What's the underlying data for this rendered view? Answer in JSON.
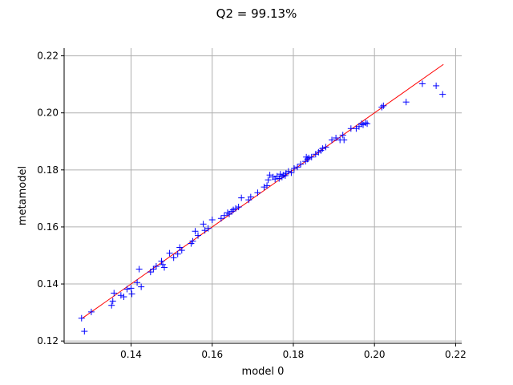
{
  "chart_data": {
    "type": "scatter",
    "title": "Q2 = 99.13%",
    "xlabel": "model 0",
    "ylabel": "metamodel",
    "xlim": [
      0.1235,
      0.2215
    ],
    "ylim": [
      0.1192,
      0.2227
    ],
    "xticks": [
      0.14,
      0.16,
      0.18,
      0.2,
      0.22
    ],
    "yticks": [
      0.12,
      0.14,
      0.16,
      0.18,
      0.2,
      0.22
    ],
    "xtick_labels": [
      "0.14",
      "0.16",
      "0.18",
      "0.20",
      "0.22"
    ],
    "ytick_labels": [
      "0.12",
      "0.14",
      "0.16",
      "0.18",
      "0.20",
      "0.22"
    ],
    "grid": true,
    "marker": "+",
    "marker_color": "#0000ff",
    "reference_line": {
      "from": [
        0.128,
        0.128
      ],
      "to": [
        0.217,
        0.217
      ],
      "color": "#ff0000"
    },
    "points": [
      [
        0.1278,
        0.128
      ],
      [
        0.1285,
        0.1234
      ],
      [
        0.1302,
        0.1302
      ],
      [
        0.1352,
        0.1325
      ],
      [
        0.1355,
        0.134
      ],
      [
        0.1358,
        0.1368
      ],
      [
        0.1375,
        0.136
      ],
      [
        0.1382,
        0.1355
      ],
      [
        0.139,
        0.1382
      ],
      [
        0.14,
        0.1385
      ],
      [
        0.1402,
        0.1365
      ],
      [
        0.1415,
        0.1405
      ],
      [
        0.142,
        0.1452
      ],
      [
        0.1425,
        0.139
      ],
      [
        0.1448,
        0.1442
      ],
      [
        0.1455,
        0.1452
      ],
      [
        0.1462,
        0.1462
      ],
      [
        0.1475,
        0.148
      ],
      [
        0.1478,
        0.1468
      ],
      [
        0.1482,
        0.1458
      ],
      [
        0.1495,
        0.1508
      ],
      [
        0.1505,
        0.1492
      ],
      [
        0.1515,
        0.1505
      ],
      [
        0.152,
        0.1528
      ],
      [
        0.1525,
        0.1518
      ],
      [
        0.1548,
        0.1542
      ],
      [
        0.1552,
        0.155
      ],
      [
        0.1558,
        0.1585
      ],
      [
        0.1565,
        0.157
      ],
      [
        0.1578,
        0.161
      ],
      [
        0.1582,
        0.1588
      ],
      [
        0.159,
        0.1595
      ],
      [
        0.16,
        0.1625
      ],
      [
        0.1622,
        0.163
      ],
      [
        0.163,
        0.164
      ],
      [
        0.1638,
        0.165
      ],
      [
        0.1642,
        0.1645
      ],
      [
        0.1648,
        0.1655
      ],
      [
        0.1652,
        0.166
      ],
      [
        0.1658,
        0.1665
      ],
      [
        0.1665,
        0.167
      ],
      [
        0.1672,
        0.1702
      ],
      [
        0.169,
        0.1695
      ],
      [
        0.1695,
        0.1705
      ],
      [
        0.1712,
        0.172
      ],
      [
        0.1728,
        0.174
      ],
      [
        0.1735,
        0.1745
      ],
      [
        0.1738,
        0.1765
      ],
      [
        0.1742,
        0.1782
      ],
      [
        0.175,
        0.1775
      ],
      [
        0.1755,
        0.1768
      ],
      [
        0.176,
        0.1778
      ],
      [
        0.1765,
        0.177
      ],
      [
        0.1768,
        0.1785
      ],
      [
        0.1772,
        0.1775
      ],
      [
        0.1775,
        0.1782
      ],
      [
        0.178,
        0.178
      ],
      [
        0.1782,
        0.1788
      ],
      [
        0.1788,
        0.1795
      ],
      [
        0.1795,
        0.179
      ],
      [
        0.1802,
        0.1805
      ],
      [
        0.181,
        0.181
      ],
      [
        0.1818,
        0.182
      ],
      [
        0.183,
        0.183
      ],
      [
        0.1832,
        0.1845
      ],
      [
        0.1835,
        0.1838
      ],
      [
        0.1838,
        0.1842
      ],
      [
        0.1845,
        0.1845
      ],
      [
        0.1855,
        0.1855
      ],
      [
        0.1862,
        0.1862
      ],
      [
        0.1868,
        0.1868
      ],
      [
        0.1872,
        0.1875
      ],
      [
        0.188,
        0.188
      ],
      [
        0.1895,
        0.1905
      ],
      [
        0.1905,
        0.1912
      ],
      [
        0.1915,
        0.1905
      ],
      [
        0.1922,
        0.1922
      ],
      [
        0.1925,
        0.1905
      ],
      [
        0.1942,
        0.1945
      ],
      [
        0.1955,
        0.1945
      ],
      [
        0.1962,
        0.1952
      ],
      [
        0.1968,
        0.1962
      ],
      [
        0.1972,
        0.1958
      ],
      [
        0.1978,
        0.1965
      ],
      [
        0.1982,
        0.1962
      ],
      [
        0.2018,
        0.202
      ],
      [
        0.2022,
        0.2025
      ],
      [
        0.2078,
        0.2038
      ],
      [
        0.2118,
        0.2102
      ],
      [
        0.2152,
        0.2095
      ],
      [
        0.2168,
        0.2065
      ]
    ]
  }
}
